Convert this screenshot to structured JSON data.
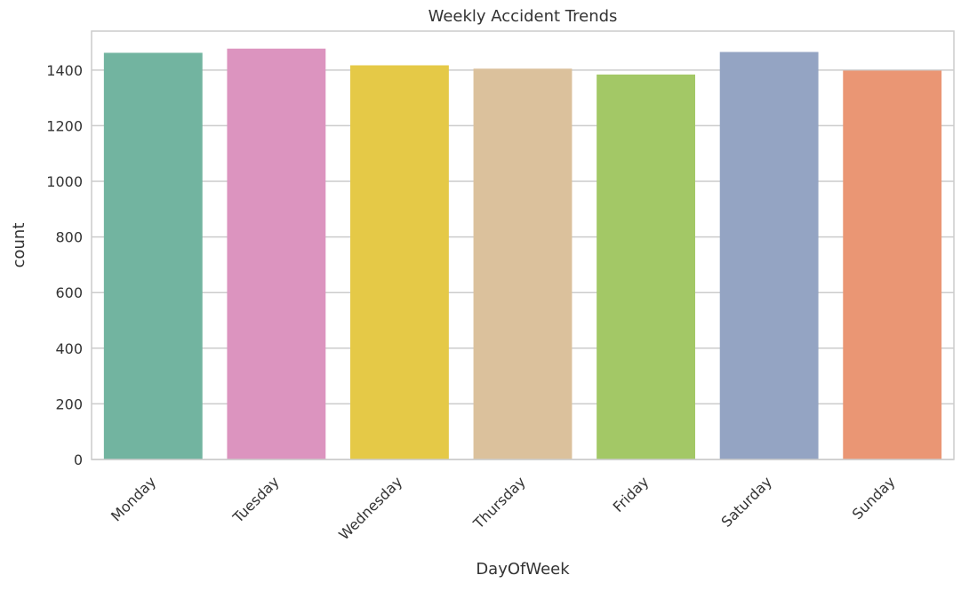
{
  "chart_data": {
    "type": "bar",
    "title": "Weekly Accident Trends",
    "xlabel": "DayOfWeek",
    "ylabel": "count",
    "categories": [
      "Monday",
      "Tuesday",
      "Wednesday",
      "Thursday",
      "Friday",
      "Saturday",
      "Sunday"
    ],
    "values": [
      1462,
      1477,
      1417,
      1405,
      1384,
      1465,
      1398
    ],
    "colors": [
      "#72b4a0",
      "#dc94bf",
      "#e5c947",
      "#dbc19c",
      "#a3c866",
      "#94a4c3",
      "#ea9674"
    ],
    "ylim": [
      0,
      1540
    ],
    "yticks": [
      0,
      200,
      400,
      600,
      800,
      1000,
      1200,
      1400
    ],
    "grid": "horizontal",
    "legend": "none",
    "x_tick_rotation": 45
  }
}
